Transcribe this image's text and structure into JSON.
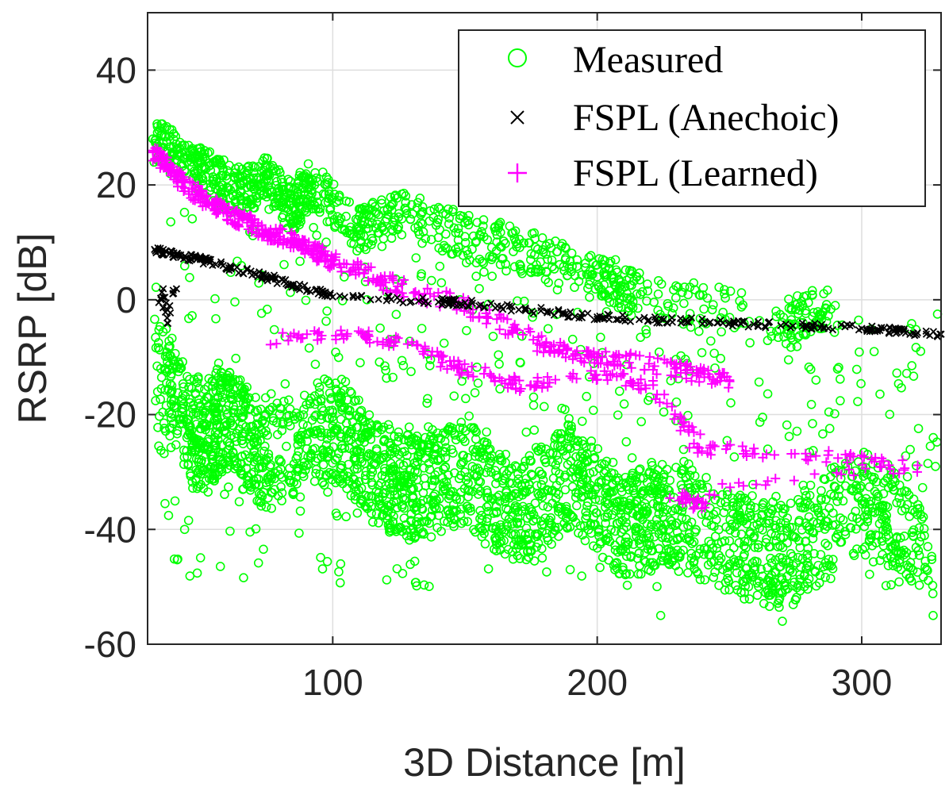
{
  "chart_data": {
    "type": "scatter",
    "title": "",
    "xlabel": "3D Distance [m]",
    "ylabel": "RSRP [dB]",
    "xlim": [
      30,
      330
    ],
    "ylim": [
      -60,
      50
    ],
    "xticks": [
      100,
      200,
      300
    ],
    "xtick_labels": [
      "100",
      "200",
      "300"
    ],
    "yticks": [
      -60,
      -40,
      -20,
      0,
      20,
      40
    ],
    "ytick_labels": [
      "-60",
      "-40",
      "-20",
      "0",
      "20",
      "40"
    ],
    "grid": true,
    "legend_position": "top-right",
    "series": [
      {
        "name": "Measured",
        "marker": "circle",
        "color": "#00ff00",
        "trend_points": [
          {
            "x": 32,
            "y": 28
          },
          {
            "x": 45,
            "y": 24
          },
          {
            "x": 55,
            "y": 21
          },
          {
            "x": 65,
            "y": 19
          },
          {
            "x": 75,
            "y": 21
          },
          {
            "x": 85,
            "y": 16
          },
          {
            "x": 92,
            "y": 20
          },
          {
            "x": 110,
            "y": 12
          },
          {
            "x": 125,
            "y": 15
          },
          {
            "x": 150,
            "y": 11
          },
          {
            "x": 175,
            "y": 8
          },
          {
            "x": 200,
            "y": 4
          },
          {
            "x": 215,
            "y": 1
          },
          {
            "x": 270,
            "y": -4
          },
          {
            "x": 290,
            "y": -1
          }
        ],
        "lower_cloud": [
          {
            "x": 35,
            "y": -12
          },
          {
            "x": 50,
            "y": -25
          },
          {
            "x": 60,
            "y": -20
          },
          {
            "x": 75,
            "y": -28
          },
          {
            "x": 100,
            "y": -22
          },
          {
            "x": 115,
            "y": -30
          },
          {
            "x": 130,
            "y": -33
          },
          {
            "x": 150,
            "y": -30
          },
          {
            "x": 170,
            "y": -38
          },
          {
            "x": 190,
            "y": -30
          },
          {
            "x": 210,
            "y": -40
          },
          {
            "x": 225,
            "y": -37
          },
          {
            "x": 250,
            "y": -42
          },
          {
            "x": 270,
            "y": -45
          },
          {
            "x": 300,
            "y": -35
          },
          {
            "x": 325,
            "y": -43
          }
        ],
        "extremes": [
          {
            "x": 44,
            "y": -40
          },
          {
            "x": 103,
            "y": -46
          },
          {
            "x": 224,
            "y": -55
          },
          {
            "x": 270,
            "y": -56
          },
          {
            "x": 327,
            "y": -55
          }
        ]
      },
      {
        "name": "FSPL (Anechoic)",
        "marker": "x",
        "color": "#000000",
        "points": [
          {
            "x": 33,
            "y": 8.5
          },
          {
            "x": 50,
            "y": 7
          },
          {
            "x": 75,
            "y": 4
          },
          {
            "x": 100,
            "y": 0.5
          },
          {
            "x": 150,
            "y": -0.5
          },
          {
            "x": 200,
            "y": -3
          },
          {
            "x": 250,
            "y": -4
          },
          {
            "x": 300,
            "y": -5
          },
          {
            "x": 330,
            "y": -6
          }
        ],
        "secondary_points": [
          {
            "x": 35,
            "y": -1
          },
          {
            "x": 36,
            "y": 1
          },
          {
            "x": 37,
            "y": -3
          },
          {
            "x": 38,
            "y": -2
          },
          {
            "x": 40,
            "y": 2
          }
        ]
      },
      {
        "name": "FSPL (Learned)",
        "marker": "plus",
        "color": "#ff00ff",
        "points": [
          {
            "x": 32,
            "y": 26
          },
          {
            "x": 40,
            "y": 22
          },
          {
            "x": 50,
            "y": 18
          },
          {
            "x": 60,
            "y": 15
          },
          {
            "x": 70,
            "y": 13
          },
          {
            "x": 80,
            "y": 11
          },
          {
            "x": 90,
            "y": 9
          },
          {
            "x": 100,
            "y": 7
          },
          {
            "x": 120,
            "y": 3
          },
          {
            "x": 150,
            "y": -1
          },
          {
            "x": 180,
            "y": -8
          },
          {
            "x": 200,
            "y": -10
          },
          {
            "x": 230,
            "y": -12
          },
          {
            "x": 250,
            "y": -14
          }
        ],
        "secondary_points": [
          {
            "x": 70,
            "y": -7
          },
          {
            "x": 110,
            "y": -6
          },
          {
            "x": 130,
            "y": -8
          },
          {
            "x": 150,
            "y": -12
          },
          {
            "x": 170,
            "y": -15
          },
          {
            "x": 200,
            "y": -13
          },
          {
            "x": 220,
            "y": -15
          },
          {
            "x": 240,
            "y": -26
          },
          {
            "x": 280,
            "y": -27
          },
          {
            "x": 320,
            "y": -29
          },
          {
            "x": 230,
            "y": -34
          },
          {
            "x": 240,
            "y": -36
          }
        ]
      }
    ]
  }
}
